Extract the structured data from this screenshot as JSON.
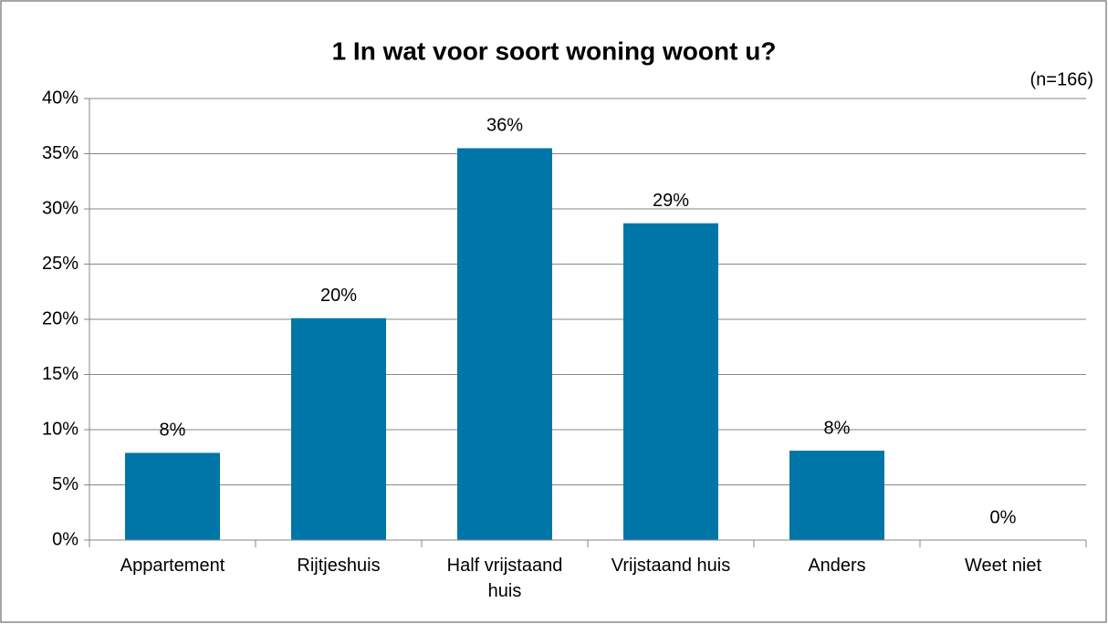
{
  "chart_data": {
    "type": "bar",
    "title": "1 In wat voor soort woning woont u?",
    "annotation": "(n=166)",
    "categories": [
      "Appartement",
      "Rijtjeshuis",
      "Half vrijstaand huis",
      "Vrijstaand huis",
      "Anders",
      "Weet niet"
    ],
    "values": [
      7.9,
      20.1,
      35.5,
      28.7,
      8.1,
      0
    ],
    "value_labels": [
      "8%",
      "20%",
      "36%",
      "29%",
      "8%",
      "0%"
    ],
    "color": "#0076a8",
    "ylim": [
      0,
      40
    ],
    "yticks": [
      {
        "value": 0,
        "label": "0%"
      },
      {
        "value": 5,
        "label": "5%"
      },
      {
        "value": 10,
        "label": "10%"
      },
      {
        "value": 15,
        "label": "15%"
      },
      {
        "value": 20,
        "label": "20%"
      },
      {
        "value": 25,
        "label": "25%"
      },
      {
        "value": 30,
        "label": "30%"
      },
      {
        "value": 35,
        "label": "35%"
      },
      {
        "value": 40,
        "label": "40%"
      }
    ],
    "grid": true
  }
}
